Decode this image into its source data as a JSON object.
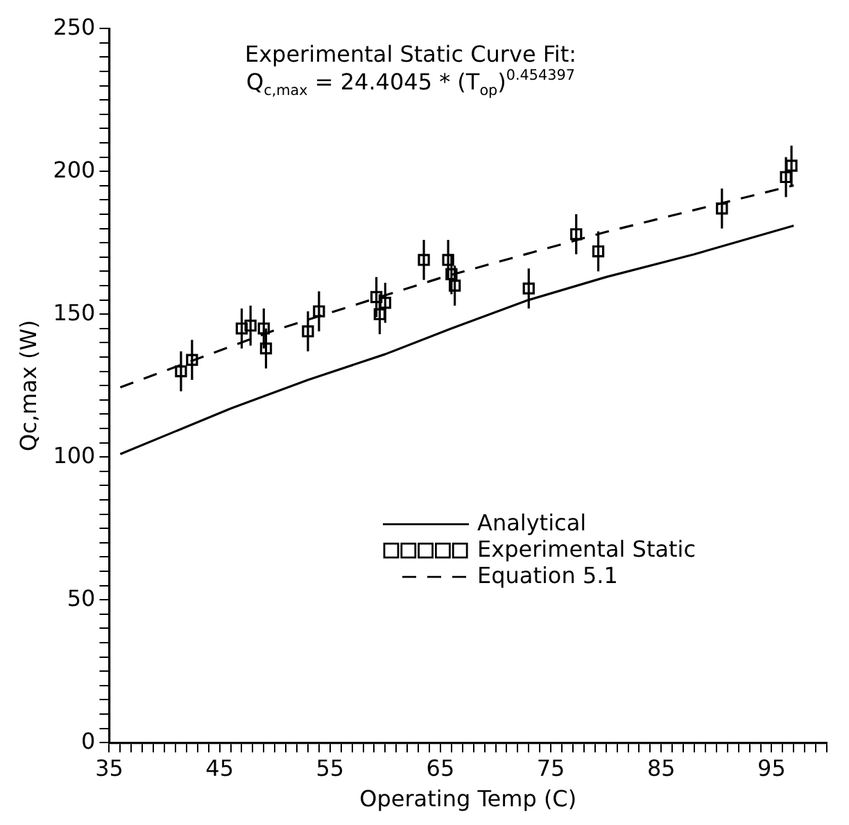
{
  "chart_data": {
    "type": "line",
    "title": "Experimental Static Curve Fit:",
    "subtitle": "Q$_{c,max}$ = 24.4045 * (T$_{op}$)$^{0.454397}$",
    "xlabel": "Operating Temp (C)",
    "ylabel": "Qc,max (W)",
    "xlim": [
      35,
      100
    ],
    "ylim": [
      0,
      250
    ],
    "xticks": [
      35,
      {
        "value": 36,
        "label": null
      },
      {
        "value": 37,
        "label": null
      },
      {
        "value": 38,
        "label": null
      },
      {
        "value": 39,
        "label": null
      },
      {
        "value": 40,
        "label": null
      },
      {
        "value": 41,
        "label": null
      },
      {
        "value": 42,
        "label": null
      },
      {
        "value": 43,
        "label": null
      },
      {
        "value": 44,
        "label": null
      },
      45,
      {
        "value": 46,
        "label": null
      },
      {
        "value": 47,
        "label": null
      },
      {
        "value": 48,
        "label": null
      },
      {
        "value": 49,
        "label": null
      },
      {
        "value": 50,
        "label": null
      },
      {
        "value": 51,
        "label": null
      },
      {
        "value": 52,
        "label": null
      },
      {
        "value": 53,
        "label": null
      },
      {
        "value": 54,
        "label": null
      },
      55,
      {
        "value": 56,
        "label": null
      },
      {
        "value": 57,
        "label": null
      },
      {
        "value": 58,
        "label": null
      },
      {
        "value": 59,
        "label": null
      },
      {
        "value": 60,
        "label": null
      },
      {
        "value": 61,
        "label": null
      },
      {
        "value": 62,
        "label": null
      },
      {
        "value": 63,
        "label": null
      },
      {
        "value": 64,
        "label": null
      },
      65,
      {
        "value": 66,
        "label": null
      },
      {
        "value": 67,
        "label": null
      },
      {
        "value": 68,
        "label": null
      },
      {
        "value": 69,
        "label": null
      },
      {
        "value": 70,
        "label": null
      },
      {
        "value": 71,
        "label": null
      },
      {
        "value": 72,
        "label": null
      },
      {
        "value": 73,
        "label": null
      },
      {
        "value": 74,
        "label": null
      },
      75,
      {
        "value": 76,
        "label": null
      },
      {
        "value": 77,
        "label": null
      },
      {
        "value": 78,
        "label": null
      },
      {
        "value": 79,
        "label": null
      },
      {
        "value": 80,
        "label": null
      },
      {
        "value": 81,
        "label": null
      },
      {
        "value": 82,
        "label": null
      },
      {
        "value": 83,
        "label": null
      },
      {
        "value": 84,
        "label": null
      },
      85,
      {
        "value": 86,
        "label": null
      },
      {
        "value": 87,
        "label": null
      },
      {
        "value": 88,
        "label": null
      },
      {
        "value": 89,
        "label": null
      },
      {
        "value": 90,
        "label": null
      },
      {
        "value": 91,
        "label": null
      },
      {
        "value": 92,
        "label": null
      },
      {
        "value": 93,
        "label": null
      },
      {
        "value": 94,
        "label": null
      },
      95,
      {
        "value": 96,
        "label": null
      },
      {
        "value": 97,
        "label": null
      },
      {
        "value": 98,
        "label": null
      },
      {
        "value": 99,
        "label": null
      },
      {
        "value": 100,
        "label": null
      }
    ],
    "yticks": [
      0,
      {
        "value": 5,
        "label": null
      },
      {
        "value": 10,
        "label": null
      },
      {
        "value": 15,
        "label": null
      },
      {
        "value": 20,
        "label": null
      },
      {
        "value": 25,
        "label": null
      },
      {
        "value": 30,
        "label": null
      },
      {
        "value": 35,
        "label": null
      },
      {
        "value": 40,
        "label": null
      },
      {
        "value": 45,
        "label": null
      },
      50,
      {
        "value": 55,
        "label": null
      },
      {
        "value": 60,
        "label": null
      },
      {
        "value": 65,
        "label": null
      },
      {
        "value": 70,
        "label": null
      },
      {
        "value": 75,
        "label": null
      },
      {
        "value": 80,
        "label": null
      },
      {
        "value": 85,
        "label": null
      },
      {
        "value": 90,
        "label": null
      },
      {
        "value": 95,
        "label": null
      },
      100,
      {
        "value": 105,
        "label": null
      },
      {
        "value": 110,
        "label": null
      },
      {
        "value": 115,
        "label": null
      },
      {
        "value": 120,
        "label": null
      },
      {
        "value": 125,
        "label": null
      },
      {
        "value": 130,
        "label": null
      },
      {
        "value": 135,
        "label": null
      },
      {
        "value": 140,
        "label": null
      },
      {
        "value": 145,
        "label": null
      },
      150,
      {
        "value": 155,
        "label": null
      },
      {
        "value": 160,
        "label": null
      },
      {
        "value": 165,
        "label": null
      },
      {
        "value": 170,
        "label": null
      },
      {
        "value": 175,
        "label": null
      },
      {
        "value": 180,
        "label": null
      },
      {
        "value": 185,
        "label": null
      },
      {
        "value": 190,
        "label": null
      },
      {
        "value": 195,
        "label": null
      },
      200,
      {
        "value": 205,
        "label": null
      },
      {
        "value": 210,
        "label": null
      },
      {
        "value": 215,
        "label": null
      },
      {
        "value": 220,
        "label": null
      },
      {
        "value": 225,
        "label": null
      },
      {
        "value": 230,
        "label": null
      },
      {
        "value": 235,
        "label": null
      },
      {
        "value": 240,
        "label": null
      },
      {
        "value": 245,
        "label": null
      },
      250
    ],
    "grid": false,
    "legend": "bottom right",
    "series": [
      {
        "name": "Analytical",
        "type": "line",
        "line_style": "solid",
        "marker": "none",
        "color": "#000000",
        "x": [
          36,
          46,
          53,
          60,
          66,
          73,
          80,
          88,
          97
        ],
        "values": [
          101,
          117,
          127,
          136,
          145,
          155,
          163,
          171,
          181
        ]
      },
      {
        "name": "Experimental Static",
        "type": "scatter",
        "marker": "square",
        "color": "#000000",
        "x": [
          41.5,
          42.5,
          47,
          47.8,
          49,
          49.2,
          53,
          54,
          59.2,
          59.5,
          60,
          63.5,
          65.7,
          66,
          66.3,
          73,
          77.3,
          79.3,
          90.5,
          96.3,
          96.8
        ],
        "values": [
          130,
          134,
          145,
          146,
          145,
          138,
          144,
          151,
          156,
          150,
          154,
          169,
          169,
          164,
          160,
          159,
          178,
          172,
          187,
          198,
          202
        ],
        "errors": [
          7,
          7,
          7,
          7,
          7,
          7,
          7,
          7,
          7,
          7,
          7,
          7,
          7,
          7,
          7,
          7,
          7,
          7,
          7,
          7,
          7
        ]
      },
      {
        "name": "Equation 5.1",
        "type": "line",
        "line_style": "dashed",
        "marker": "none",
        "color": "#000000",
        "x": [
          36,
          50,
          65,
          80,
          97
        ],
        "values": [
          124.4,
          144.4,
          162.7,
          178.8,
          195.1
        ]
      }
    ]
  }
}
